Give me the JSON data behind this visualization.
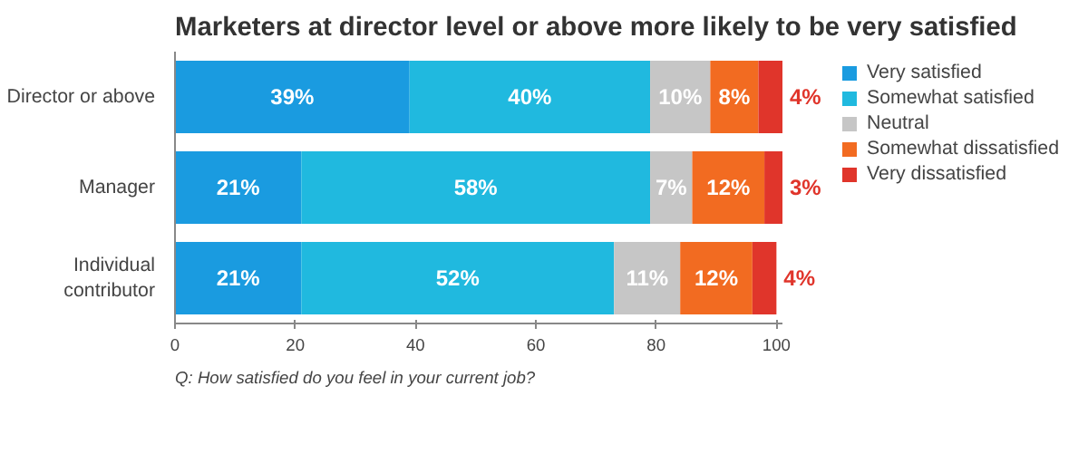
{
  "chart_data": {
    "type": "bar",
    "orientation": "horizontal",
    "stacked": true,
    "title": "Marketers at director level or above more likely to be very satisfied",
    "categories": [
      "Director or above",
      "Manager",
      "Individual contributor"
    ],
    "series": [
      {
        "name": "Very satisfied",
        "color": "#1a9be0",
        "values": [
          39,
          21,
          21
        ],
        "value_labels": [
          "39%",
          "21%",
          "21%"
        ]
      },
      {
        "name": "Somewhat satisfied",
        "color": "#20b9df",
        "values": [
          40,
          58,
          52
        ],
        "value_labels": [
          "40%",
          "58%",
          "52%"
        ]
      },
      {
        "name": "Neutral",
        "color": "#c6c6c6",
        "values": [
          10,
          7,
          11
        ],
        "value_labels": [
          "10%",
          "7%",
          "11%"
        ]
      },
      {
        "name": "Somewhat dissatisfied",
        "color": "#f26b21",
        "values": [
          8,
          12,
          12
        ],
        "value_labels": [
          "8%",
          "12%",
          "12%"
        ]
      },
      {
        "name": "Very dissatisfied",
        "color": "#e0352b",
        "values": [
          4,
          3,
          4
        ],
        "value_labels": [
          "4%",
          "3%",
          "4%"
        ]
      }
    ],
    "xlim": [
      0,
      101
    ],
    "xticks": [
      0,
      20,
      40,
      60,
      80,
      100
    ],
    "grid": false,
    "legend": "right",
    "annotations": [
      "Q: How satisfied do you feel in your current job?"
    ]
  }
}
